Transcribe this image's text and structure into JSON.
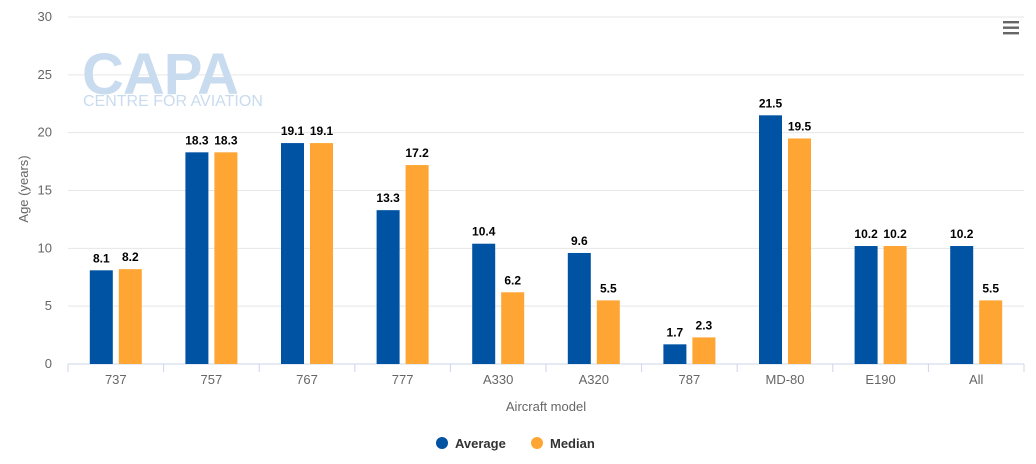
{
  "chart_data": {
    "type": "bar",
    "categories": [
      "737",
      "757",
      "767",
      "777",
      "A330",
      "A320",
      "787",
      "MD-80",
      "E190",
      "All"
    ],
    "series": [
      {
        "name": "Average",
        "color": "#0052a3",
        "values": [
          8.1,
          18.3,
          19.1,
          13.3,
          10.4,
          9.6,
          1.7,
          21.5,
          10.2,
          10.2
        ]
      },
      {
        "name": "Median",
        "color": "#ffa534",
        "values": [
          8.2,
          18.3,
          19.1,
          17.2,
          6.2,
          5.5,
          2.3,
          19.5,
          10.2,
          5.5
        ]
      }
    ],
    "xlabel": "Aircraft model",
    "ylabel": "Age (years)",
    "ylim": [
      0,
      30
    ],
    "yticks": [
      0,
      5,
      10,
      15,
      20,
      25,
      30
    ],
    "grid": true,
    "legend": "bottom-center"
  },
  "watermark": {
    "brand": "CAPA",
    "tagline": "CENTRE FOR AVIATION"
  },
  "menu_icon": "hamburger-menu-icon"
}
